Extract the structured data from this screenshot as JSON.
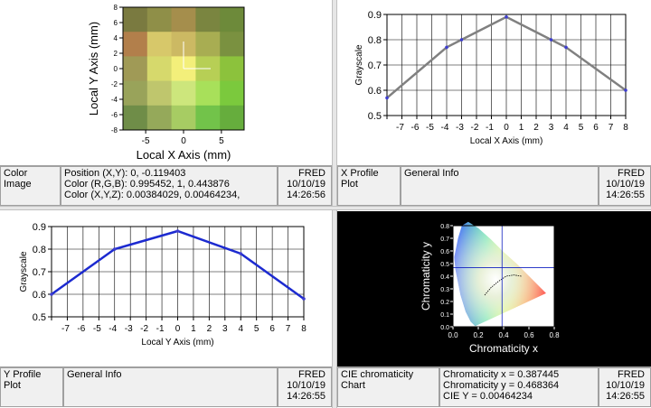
{
  "panels": {
    "color_image": {
      "type_label": "Color Image",
      "info_lines": [
        "Position (X,Y): 0, -0.119403",
        "Color  (R,G,B): 0.995452, 1, 0.443876",
        "Color  (X,Y,Z): 0.00384029, 0.00464234,"
      ],
      "stamp": [
        "FRED",
        "10/10/19",
        "14:26:56"
      ],
      "xlabel": "Local X Axis (mm)",
      "ylabel": "Local Y Axis (mm)",
      "xticks": [
        "-5",
        "0",
        "5"
      ],
      "yticks": [
        "8",
        "6",
        "4",
        "2",
        "0",
        "-2",
        "-4",
        "-6",
        "-8"
      ],
      "cell_colors": [
        [
          "#7a7a40",
          "#8f8f48",
          "#a58e4c",
          "#7a8540",
          "#6d8a3a"
        ],
        [
          "#b27f4b",
          "#d7c86a",
          "#ccb963",
          "#a8ad52",
          "#7a9140"
        ],
        [
          "#a09a56",
          "#d6d96c",
          "#f3ef7a",
          "#b7cf55",
          "#8cc23c"
        ],
        [
          "#99a35a",
          "#bfc66d",
          "#cde67c",
          "#a8e05a",
          "#7bc93d"
        ],
        [
          "#6f8d48",
          "#95a95a",
          "#a7cc63",
          "#72c34a",
          "#66ad3d"
        ]
      ]
    },
    "x_profile": {
      "type_label": "X Profile Plot",
      "info_label": "General Info",
      "stamp": [
        "FRED",
        "10/10/19",
        "14:26:55"
      ]
    },
    "y_profile": {
      "type_label": "Y Profile Plot",
      "info_label": "General Info",
      "stamp": [
        "FRED",
        "10/10/19",
        "14:26:55"
      ]
    },
    "cie": {
      "type_label": "CIE chromaticity Chart",
      "info_lines": [
        "Chromaticity x = 0.387445",
        "Chromaticity y = 0.468364",
        "CIE Y = 0.00464234"
      ],
      "stamp": [
        "FRED",
        "10/10/19",
        "14:26:55"
      ],
      "xlabel": "Chromaticity  x",
      "ylabel": "Chromaticity  y",
      "xticks": [
        "0.0",
        "0.2",
        "0.4",
        "0.6",
        "0.8"
      ],
      "yticks": [
        "0.0",
        "0.1",
        "0.2",
        "0.3",
        "0.4",
        "0.5",
        "0.6",
        "0.7",
        "0.8"
      ],
      "crosshair": {
        "x": 0.387445,
        "y": 0.468364
      }
    }
  },
  "chart_data": [
    {
      "type": "line",
      "title": "",
      "xlabel": "Local X Axis (mm)",
      "ylabel": "Grayscale",
      "x": [
        -8,
        -4,
        -3,
        0,
        3,
        4,
        8
      ],
      "series": [
        {
          "values": [
            0.57,
            0.77,
            0.8,
            0.89,
            0.8,
            0.77,
            0.6
          ]
        }
      ],
      "xlim": [
        -8,
        8
      ],
      "ylim": [
        0.5,
        0.9
      ],
      "xticks": [
        "-7",
        "-6",
        "-5",
        "-4",
        "-3",
        "-2",
        "-1",
        "0",
        "1",
        "2",
        "3",
        "4",
        "5",
        "6",
        "7",
        "8"
      ],
      "yticks": [
        "0.5",
        "0.6",
        "0.7",
        "0.8",
        "0.9"
      ],
      "line_color": "#808080",
      "grid": true
    },
    {
      "type": "line",
      "title": "",
      "xlabel": "Local Y Axis (mm)",
      "ylabel": "Grayscale",
      "x": [
        -8,
        -4,
        0,
        4,
        8
      ],
      "series": [
        {
          "values": [
            0.6,
            0.8,
            0.88,
            0.78,
            0.58
          ]
        }
      ],
      "xlim": [
        -8,
        8
      ],
      "ylim": [
        0.5,
        0.9
      ],
      "xticks": [
        "-7",
        "-6",
        "-5",
        "-4",
        "-3",
        "-2",
        "-1",
        "0",
        "1",
        "2",
        "3",
        "4",
        "5",
        "6",
        "7",
        "8"
      ],
      "yticks": [
        "0.5",
        "0.6",
        "0.7",
        "0.8",
        "0.9"
      ],
      "line_color": "#1c2ad0",
      "grid": true
    }
  ]
}
